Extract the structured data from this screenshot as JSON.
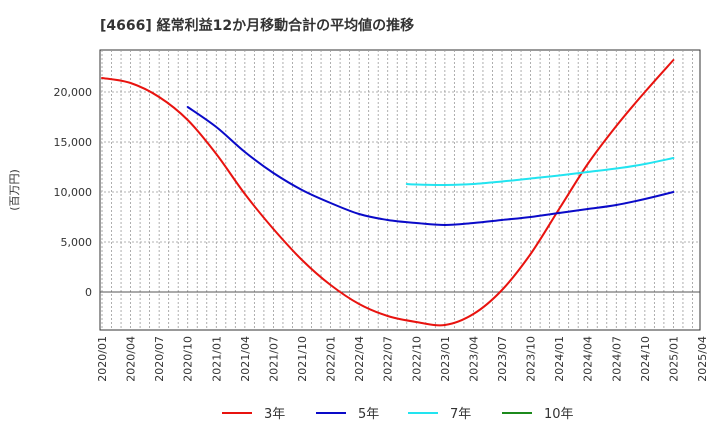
{
  "chart_data": {
    "type": "line",
    "title": "[4666]  経常利益12か月移動合計の平均値の推移",
    "ylabel": "(百万円)",
    "xlabel": "",
    "ylim": [
      -3800,
      24200
    ],
    "yticks": [
      0,
      5000,
      10000,
      15000,
      20000
    ],
    "ytick_labels": [
      "0",
      "5,000",
      "10,000",
      "15,000",
      "20,000"
    ],
    "xticks": [
      "2020/01",
      "2020/04",
      "2020/07",
      "2020/10",
      "2021/01",
      "2021/04",
      "2021/07",
      "2021/10",
      "2022/01",
      "2022/04",
      "2022/07",
      "2022/10",
      "2023/01",
      "2023/04",
      "2023/07",
      "2023/10",
      "2024/01",
      "2024/04",
      "2024/07",
      "2024/10",
      "2025/01",
      "2025/04"
    ],
    "grid": true,
    "legend_position": "bottom",
    "series": [
      {
        "name": "3年",
        "color": "#e8130f",
        "points": [
          [
            "2020/01",
            21400
          ],
          [
            "2020/04",
            20900
          ],
          [
            "2020/07",
            19500
          ],
          [
            "2020/10",
            17200
          ],
          [
            "2021/01",
            13800
          ],
          [
            "2021/04",
            9800
          ],
          [
            "2021/07",
            6300
          ],
          [
            "2021/10",
            3200
          ],
          [
            "2022/01",
            700
          ],
          [
            "2022/04",
            -1200
          ],
          [
            "2022/07",
            -2400
          ],
          [
            "2022/10",
            -3000
          ],
          [
            "2023/01",
            -3300
          ],
          [
            "2023/04",
            -2200
          ],
          [
            "2023/07",
            200
          ],
          [
            "2023/10",
            3800
          ],
          [
            "2024/01",
            8300
          ],
          [
            "2024/04",
            12800
          ],
          [
            "2024/07",
            16600
          ],
          [
            "2024/10",
            20000
          ],
          [
            "2025/01",
            23200
          ]
        ]
      },
      {
        "name": "5年",
        "color": "#0a0ac8",
        "points": [
          [
            "2020/10",
            18500
          ],
          [
            "2021/01",
            16500
          ],
          [
            "2021/04",
            14000
          ],
          [
            "2021/07",
            11900
          ],
          [
            "2021/10",
            10200
          ],
          [
            "2022/01",
            8900
          ],
          [
            "2022/04",
            7800
          ],
          [
            "2022/07",
            7200
          ],
          [
            "2022/10",
            6900
          ],
          [
            "2023/01",
            6700
          ],
          [
            "2023/04",
            6900
          ],
          [
            "2023/07",
            7200
          ],
          [
            "2023/10",
            7500
          ],
          [
            "2024/01",
            7900
          ],
          [
            "2024/04",
            8300
          ],
          [
            "2024/07",
            8700
          ],
          [
            "2024/10",
            9300
          ],
          [
            "2025/01",
            10000
          ]
        ]
      },
      {
        "name": "7年",
        "color": "#22e4f0",
        "points": [
          [
            "2022/09",
            10800
          ],
          [
            "2022/10",
            10750
          ],
          [
            "2023/01",
            10700
          ],
          [
            "2023/04",
            10800
          ],
          [
            "2023/07",
            11050
          ],
          [
            "2023/10",
            11350
          ],
          [
            "2024/01",
            11650
          ],
          [
            "2024/04",
            12000
          ],
          [
            "2024/07",
            12350
          ],
          [
            "2024/10",
            12800
          ],
          [
            "2025/01",
            13400
          ]
        ]
      },
      {
        "name": "10年",
        "color": "#1c8a1c",
        "points": []
      }
    ]
  }
}
